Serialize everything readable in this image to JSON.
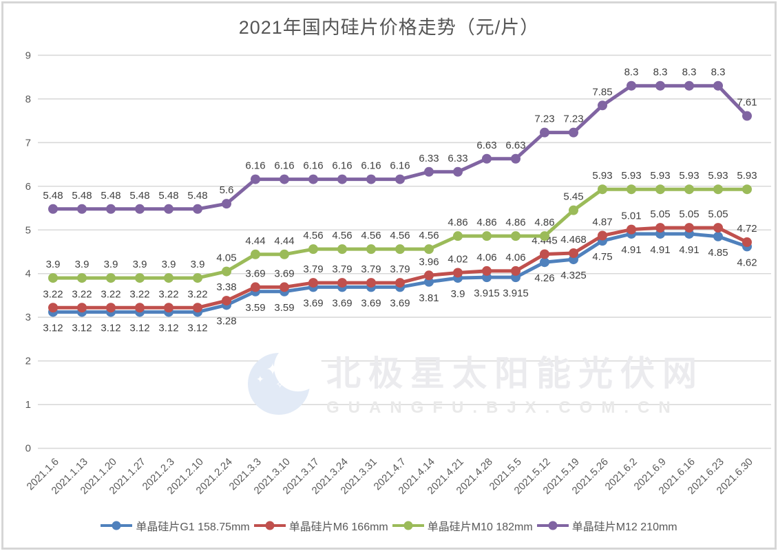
{
  "title": "2021年国内硅片价格走势（元/片）",
  "watermark": {
    "line1": "北极星太阳能光伏网",
    "line2": "GUANGFU.BJX.COM.CN"
  },
  "chart_data": {
    "type": "line",
    "title": "2021年国内硅片价格走势（元/片）",
    "xlabel": "",
    "ylabel": "",
    "ylim": [
      0,
      9
    ],
    "ytick_step": 1,
    "grid": true,
    "legend_position": "bottom",
    "categories": [
      "2021.1.6",
      "2021.1.13",
      "2021.1.20",
      "2021.1.27",
      "2021.2.3",
      "2021.2.10",
      "2021.2.24",
      "2021.3.3",
      "2021.3.10",
      "2021.3.17",
      "2021.3.24",
      "2021.3.31",
      "2021.4.7",
      "2021.4.14",
      "2021.4.21",
      "2021.4.28",
      "2021.5.5",
      "2021.5.12",
      "2021.5.19",
      "2021.5.26",
      "2021.6.2",
      "2021.6.9",
      "2021.6.16",
      "2021.6.23",
      "2021.6.30"
    ],
    "series": [
      {
        "name": "单晶硅片G1 158.75mm",
        "color": "#4F81BD",
        "label_position": "below",
        "values": [
          3.12,
          3.12,
          3.12,
          3.12,
          3.12,
          3.12,
          3.28,
          3.59,
          3.59,
          3.69,
          3.69,
          3.69,
          3.69,
          3.81,
          3.9,
          3.915,
          3.915,
          4.26,
          4.325,
          4.75,
          4.91,
          4.91,
          4.91,
          4.85,
          4.62
        ]
      },
      {
        "name": "单晶硅片M6 166mm",
        "color": "#C0504D",
        "label_position": "above",
        "values": [
          3.22,
          3.22,
          3.22,
          3.22,
          3.22,
          3.22,
          3.38,
          3.69,
          3.69,
          3.79,
          3.79,
          3.79,
          3.79,
          3.96,
          4.02,
          4.06,
          4.06,
          4.445,
          4.468,
          4.87,
          5.01,
          5.05,
          5.05,
          5.05,
          4.72
        ]
      },
      {
        "name": "单晶硅片M10 182mm",
        "color": "#9BBB59",
        "label_position": "above",
        "values": [
          3.9,
          3.9,
          3.9,
          3.9,
          3.9,
          3.9,
          4.05,
          4.44,
          4.44,
          4.56,
          4.56,
          4.56,
          4.56,
          4.56,
          4.86,
          4.86,
          4.86,
          4.86,
          5.45,
          5.93,
          5.93,
          5.93,
          5.93,
          5.93,
          5.93
        ]
      },
      {
        "name": "单晶硅片M12 210mm",
        "color": "#8064A2",
        "label_position": "above",
        "values": [
          5.48,
          5.48,
          5.48,
          5.48,
          5.48,
          5.48,
          5.6,
          6.16,
          6.16,
          6.16,
          6.16,
          6.16,
          6.16,
          6.33,
          6.33,
          6.63,
          6.63,
          7.23,
          7.23,
          7.85,
          8.3,
          8.3,
          8.3,
          8.3,
          7.61
        ]
      }
    ]
  },
  "colors": {
    "grid": "#d9d9d9",
    "axis_text": "#595959",
    "data_label": "#3f3f3f",
    "title_text": "#555555"
  }
}
